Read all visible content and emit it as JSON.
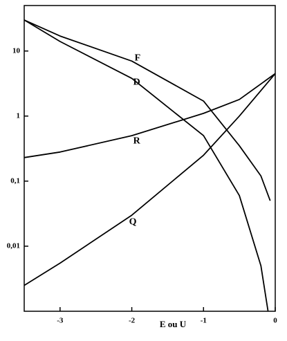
{
  "chart_data": {
    "type": "line",
    "xlabel": "E ou U",
    "xlim": [
      -3.5,
      0
    ],
    "xticks": [
      -3,
      -2,
      -1,
      0
    ],
    "ylim": [
      0.001,
      50
    ],
    "log_y": true,
    "yticks": [
      10,
      1,
      {
        "value": 0.1,
        "label": "0,1"
      },
      {
        "value": 0.01,
        "label": "0,01"
      }
    ],
    "series": [
      {
        "name": "F",
        "color": "#000000",
        "x": [
          -3.5,
          -3,
          -2,
          -1,
          -0.5,
          -0.2,
          -0.07
        ],
        "values": [
          30,
          17,
          7,
          1.7,
          0.35,
          0.12,
          0.05
        ]
      },
      {
        "name": "D",
        "color": "#000000",
        "x": [
          -3.5,
          -3,
          -2,
          -1,
          -0.5,
          -0.2,
          -0.1
        ],
        "values": [
          30,
          14,
          3.8,
          0.5,
          0.06,
          0.005,
          0.001
        ]
      },
      {
        "name": "R",
        "color": "#000000",
        "x": [
          -3.5,
          -3,
          -2,
          -1,
          -0.5,
          0
        ],
        "values": [
          0.23,
          0.28,
          0.5,
          1.1,
          1.8,
          4.5
        ]
      },
      {
        "name": "Q",
        "color": "#000000",
        "x": [
          -3.5,
          -3,
          -2,
          -1,
          -0.5,
          0
        ],
        "values": [
          0.0025,
          0.0055,
          0.03,
          0.25,
          1,
          4.5
        ]
      }
    ]
  }
}
